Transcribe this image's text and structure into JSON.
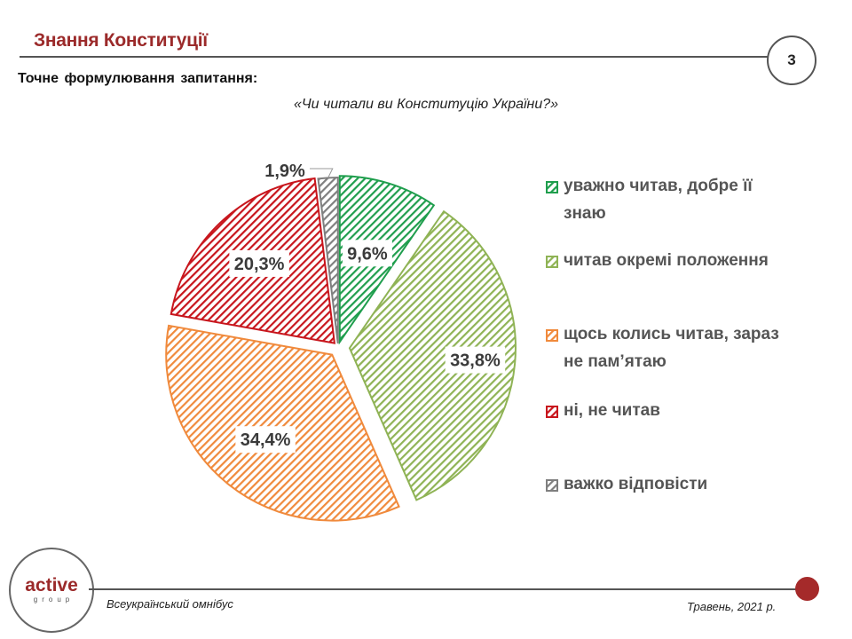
{
  "header": {
    "title": "Знання Конституції",
    "page_number": "3",
    "question_label": "Точне  формулювання  запитання:",
    "question_text": "«Чи читали ви Конституцію України?»"
  },
  "chart_data": {
    "type": "pie",
    "slices": [
      {
        "label": "уважно читав, добре її знаю",
        "value": 9.6,
        "display": "9,6%",
        "color": "#1f9e4d"
      },
      {
        "label": "читав окремі положення",
        "value": 33.8,
        "display": "33,8%",
        "color": "#8fb355"
      },
      {
        "label": "щось колись читав, зараз не пам’ятаю",
        "value": 34.4,
        "display": "34,4%",
        "color": "#f08a3c"
      },
      {
        "label": "ні, не читав",
        "value": 20.3,
        "display": "20,3%",
        "color": "#c8161d"
      },
      {
        "label": "важко відповісти",
        "value": 1.9,
        "display": "1,9%",
        "color": "#7f7f7f"
      }
    ],
    "legend_position": "right",
    "fill_pattern": "diagonal-hatch"
  },
  "legend": {
    "items": [
      "уважно читав, добре її знаю",
      "читав окремі положення",
      "щось колись читав, зараз не пам’ятаю",
      "ні, не читав",
      "важко відповісти"
    ]
  },
  "footer": {
    "logo_word": "active",
    "logo_sub": "group",
    "survey": "Всеукраїнський омнібус",
    "date": "Травень, 2021 р."
  }
}
